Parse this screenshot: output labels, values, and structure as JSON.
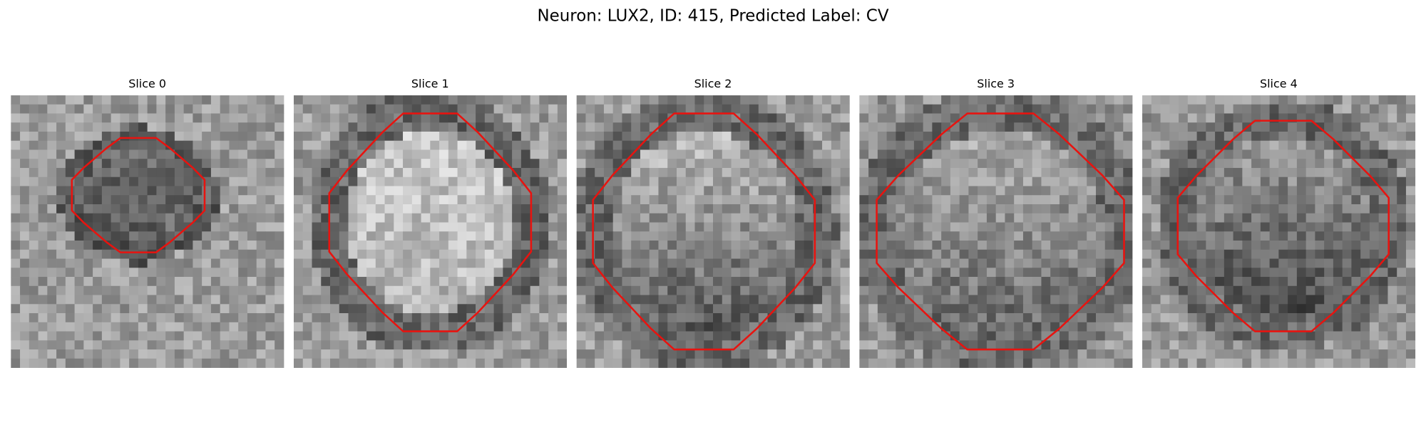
{
  "title": "Neuron: LUX2, ID: 415, Predicted Label: CV",
  "panels": [
    {
      "title": "Slice 0"
    },
    {
      "title": "Slice 1"
    },
    {
      "title": "Slice 2"
    },
    {
      "title": "Slice 3"
    },
    {
      "title": "Slice 4"
    }
  ]
}
